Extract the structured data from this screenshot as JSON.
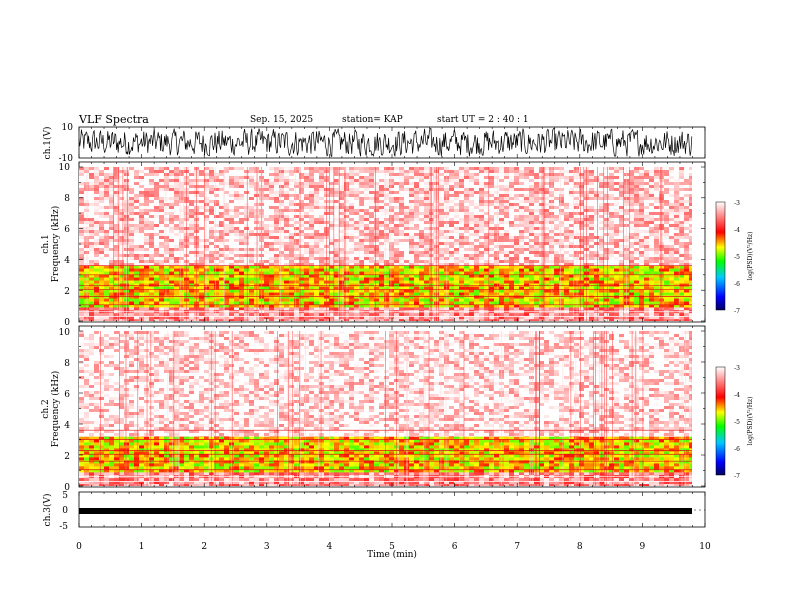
{
  "header": {
    "title": "VLF Spectra",
    "date": "Sep. 15, 2025",
    "station": "station= KAP",
    "start": "start  UT =   2 : 40 : 1"
  },
  "colorbar": {
    "label": "log(PSD)(V²/Hz)",
    "ticks": [
      "-3",
      "-4",
      "-5",
      "-6",
      "-7"
    ],
    "range": [
      -7,
      -3
    ],
    "colors": [
      "#000080",
      "#0000ff",
      "#00ffff",
      "#00ff00",
      "#ffff00",
      "#ff0000",
      "#ffffff"
    ]
  },
  "chart_data": [
    {
      "type": "line",
      "name": "ch.1 waveform",
      "ylabel": "ch.1(V)",
      "ylim": [
        -10,
        10
      ],
      "yticks": [
        "10",
        "-10"
      ],
      "xlim": [
        0,
        10
      ],
      "description_series": "dense noise waveform spanning roughly -8 to 8 V"
    },
    {
      "type": "heatmap",
      "name": "ch.1 spectrogram",
      "ylabel": "ch.1",
      "ylabel2": "Frequency (kHz)",
      "ylim": [
        0,
        10
      ],
      "yticks": [
        "0",
        "2",
        "4",
        "6",
        "8",
        "10"
      ],
      "xlim": [
        0,
        9.8
      ],
      "bands_khz": [
        {
          "from": 0,
          "to": 0.9,
          "level": -3.5
        },
        {
          "from": 0.9,
          "to": 3.6,
          "level": -4.6
        },
        {
          "from": 3.6,
          "to": 10,
          "level": -3.2
        }
      ]
    },
    {
      "type": "heatmap",
      "name": "ch.2 spectrogram",
      "ylabel": "ch.2",
      "ylabel2": "Frequency (kHz)",
      "ylim": [
        0,
        10
      ],
      "yticks": [
        "0",
        "2",
        "4",
        "6",
        "8",
        "10"
      ],
      "xlim": [
        0,
        9.8
      ],
      "bands_khz": [
        {
          "from": 0,
          "to": 0.9,
          "level": -3.5
        },
        {
          "from": 0.9,
          "to": 3.2,
          "level": -4.6
        },
        {
          "from": 3.2,
          "to": 10,
          "level": -3.1
        }
      ]
    },
    {
      "type": "line",
      "name": "ch.3 waveform",
      "ylabel": "ch.3(V)",
      "ylim": [
        -5,
        5
      ],
      "yticks": [
        "5",
        "0",
        "-5"
      ],
      "xlim": [
        0,
        10
      ],
      "description_series": "narrow band near -2 V"
    }
  ],
  "xaxis": {
    "label": "Time  (min)",
    "ticks": [
      "0",
      "1",
      "2",
      "3",
      "4",
      "5",
      "6",
      "7",
      "8",
      "9",
      "10"
    ],
    "range": [
      0,
      10
    ]
  }
}
